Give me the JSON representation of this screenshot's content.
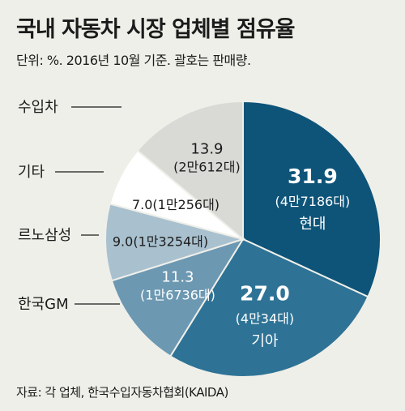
{
  "header": {
    "title": "국내 자동차 시장 업체별 점유율",
    "subtitle": "단위: %. 2016년 10월 기준. 괄호는 판매량."
  },
  "footer": {
    "source": "자료: 각 업체, 한국수입자동차협회(KAIDA)"
  },
  "chart_data": {
    "type": "pie",
    "categories": [
      "현대",
      "기아",
      "한국GM",
      "르노삼성",
      "기타",
      "수입차"
    ],
    "values": [
      31.9,
      27.0,
      11.3,
      9.0,
      7.0,
      13.9
    ],
    "sales": [
      "4만7186대",
      "4만34대",
      "1만6736대",
      "1만3254대",
      "1만256대",
      "2만612대"
    ],
    "value_labels": [
      "31.9",
      "27.0",
      "11.3",
      "9.0",
      "7.0",
      "13.9"
    ],
    "sales_labels": [
      "(4만7186대)",
      "(4만34대)",
      "(1만6736대)",
      "(1만3254대)",
      "(1만256대)",
      "(2만612대)"
    ],
    "colors": [
      "#0e5479",
      "#2e7396",
      "#6c98b2",
      "#a9c1cf",
      "#ffffff",
      "#d9d9d6"
    ],
    "title": "국내 자동차 시장 업체별 점유율",
    "unit": "%"
  }
}
